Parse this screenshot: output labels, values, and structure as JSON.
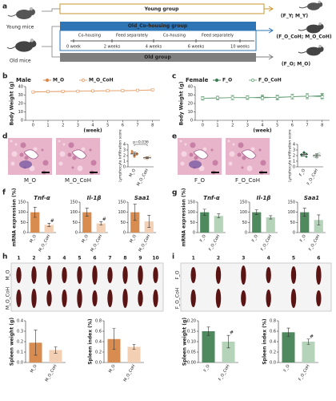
{
  "panel_labels": [
    "a",
    "b",
    "c",
    "d",
    "e",
    "f",
    "g",
    "h",
    "i"
  ],
  "schematic": {
    "young_mice": "Young mice",
    "old_mice": "Old mice",
    "young_group": "Young group",
    "cohousing_group": "Old_Co-housing group",
    "old_group": "Old group",
    "phases": [
      "Co-housing",
      "Feed separately",
      "Co-housing",
      "Feed separately"
    ],
    "timepoints": [
      "0 week",
      "2 weeks",
      "4 weeks",
      "6 weeks",
      "10 weeks"
    ],
    "outcomes": [
      "(F_Y; M_Y)",
      "(F_O_CoH; M_O_CoH)",
      "(F_O; M_O)"
    ]
  },
  "micrographs": {
    "d": [
      "M_O",
      "M_O_CoH"
    ],
    "e": [
      "F_O",
      "F_O_CoH"
    ]
  },
  "spleen_photos": {
    "h": {
      "numbers": [
        "1",
        "2",
        "3",
        "4",
        "5",
        "6",
        "7",
        "8",
        "9",
        "10"
      ],
      "rows": [
        "M_O",
        "M_O_CoH"
      ]
    },
    "i": {
      "numbers": [
        "1",
        "2",
        "3",
        "4",
        "5",
        "6"
      ],
      "rows": [
        "F_O",
        "F_O_CoH"
      ]
    }
  },
  "chart_data": [
    {
      "type": "line",
      "title": "Male",
      "xlabel": "(week)",
      "ylabel": "Body Weight (g)",
      "x": [
        0,
        1,
        2,
        3,
        4,
        5,
        6,
        7,
        8
      ],
      "xlim": [
        -0.5,
        8.5
      ],
      "xticks": [
        0,
        1,
        2,
        3,
        4,
        5,
        6,
        7,
        8
      ],
      "ylim": [
        0,
        40
      ],
      "yticks": [
        0,
        10,
        20,
        30,
        40
      ],
      "series": [
        {
          "name": "M_O",
          "color": "#d9874a",
          "values": [
            33.5,
            34,
            34.2,
            34.5,
            34.8,
            35,
            35.2,
            35.5,
            36
          ],
          "errors": [
            1,
            1,
            1,
            1,
            1,
            1,
            1,
            1,
            1
          ]
        },
        {
          "name": "M_O_CoH",
          "color": "#e8a878",
          "values": [
            33.8,
            34.2,
            34.5,
            34.6,
            34.9,
            35.1,
            35.3,
            35.6,
            36.2
          ],
          "errors": [
            1.2,
            1.2,
            1.2,
            1.2,
            1.2,
            1.2,
            1.2,
            1.2,
            1.2
          ]
        }
      ]
    },
    {
      "type": "line",
      "title": "Female",
      "xlabel": "(week)",
      "ylabel": "Body Weight (g)",
      "x": [
        0,
        1,
        2,
        3,
        4,
        5,
        6,
        7,
        8
      ],
      "xlim": [
        -0.5,
        8.5
      ],
      "xticks": [
        0,
        1,
        2,
        3,
        4,
        5,
        6,
        7,
        8
      ],
      "ylim": [
        0,
        40
      ],
      "yticks": [
        0,
        10,
        20,
        30,
        40
      ],
      "series": [
        {
          "name": "F_O",
          "color": "#3f7f55",
          "values": [
            26,
            26.5,
            27,
            26.8,
            27.5,
            27,
            28,
            28.5,
            29
          ],
          "errors": [
            2,
            2,
            2.5,
            2,
            2.5,
            2.5,
            3,
            3,
            3
          ]
        },
        {
          "name": "F_O_CoH",
          "color": "#7fb08a",
          "values": [
            26.2,
            26.8,
            27,
            27.2,
            26.5,
            27.5,
            28.2,
            28.8,
            27.8
          ],
          "errors": [
            2,
            2,
            2.5,
            2,
            2.5,
            2.5,
            3,
            3,
            3
          ]
        }
      ]
    },
    {
      "type": "dot",
      "ylabel": "Lymphocyte infiltration score",
      "annotation": "p=0.036",
      "categories": [
        "M_O",
        "M_O_CoH"
      ],
      "colors": [
        "#d9874a",
        "#e8a878"
      ],
      "ylim": [
        0,
        4
      ],
      "yticks": [
        0,
        1,
        2,
        3,
        4
      ],
      "points": [
        [
          2.5,
          2.0,
          2.2,
          2.8,
          1.8,
          2.4
        ],
        [
          1.6,
          1.4,
          1.8,
          1.5,
          1.7
        ]
      ],
      "values": [
        2.3,
        1.6
      ],
      "errors": [
        0.3,
        0.15
      ]
    },
    {
      "type": "dot",
      "ylabel": "Lymphocyte infiltration score",
      "categories": [
        "F_O",
        "F_O_CoH"
      ],
      "colors": [
        "#3f7f55",
        "#7fb08a"
      ],
      "ylim": [
        0,
        4
      ],
      "yticks": [
        0,
        1,
        2,
        3,
        4
      ],
      "points": [
        [
          2.2,
          2.5,
          1.8,
          2.0,
          2.6,
          2.3
        ],
        [
          2.0,
          1.6,
          2.4,
          1.8,
          2.2
        ]
      ],
      "values": [
        2.2,
        2.0
      ],
      "errors": [
        0.3,
        0.3
      ]
    },
    {
      "type": "bar",
      "title": "Tnf-α",
      "ylabel": "mRNA expression (%)",
      "categories": [
        "M_O",
        "M_O_CoH"
      ],
      "colors": [
        "#d98c4f",
        "#f3cfb3"
      ],
      "ylim": [
        0,
        150
      ],
      "yticks": [
        0,
        50,
        100,
        150
      ],
      "values": [
        100,
        38
      ],
      "errors": [
        25,
        8
      ],
      "annotations": {
        "M_O_CoH": "#"
      }
    },
    {
      "type": "bar",
      "title": "Il-1β",
      "categories": [
        "M_O",
        "M_O_CoH"
      ],
      "colors": [
        "#d98c4f",
        "#f3cfb3"
      ],
      "ylim": [
        0,
        150
      ],
      "yticks": [
        0,
        50,
        100,
        150
      ],
      "values": [
        100,
        45
      ],
      "errors": [
        20,
        8
      ],
      "annotations": {
        "M_O_CoH": "#"
      }
    },
    {
      "type": "bar",
      "title": "Saa1",
      "categories": [
        "M_O",
        "M_O_CoH"
      ],
      "colors": [
        "#d98c4f",
        "#f3cfb3"
      ],
      "ylim": [
        0,
        150
      ],
      "yticks": [
        0,
        50,
        100,
        150
      ],
      "values": [
        100,
        55
      ],
      "errors": [
        40,
        30
      ]
    },
    {
      "type": "bar",
      "title": "Tnf-α",
      "ylabel": "mRNA expression (%)",
      "categories": [
        "F_O",
        "F_O_CoH"
      ],
      "colors": [
        "#4e8a5e",
        "#b5d3b9"
      ],
      "ylim": [
        0,
        150
      ],
      "yticks": [
        0,
        50,
        100,
        150
      ],
      "values": [
        100,
        82
      ],
      "errors": [
        15,
        10
      ]
    },
    {
      "type": "bar",
      "title": "Il-1β",
      "categories": [
        "F_O",
        "F_O_CoH"
      ],
      "colors": [
        "#4e8a5e",
        "#b5d3b9"
      ],
      "ylim": [
        0,
        150
      ],
      "yticks": [
        0,
        50,
        100,
        150
      ],
      "values": [
        100,
        75
      ],
      "errors": [
        12,
        8
      ]
    },
    {
      "type": "bar",
      "title": "Saa1",
      "categories": [
        "F_O",
        "F_O_CoH"
      ],
      "colors": [
        "#4e8a5e",
        "#b5d3b9"
      ],
      "ylim": [
        0,
        150
      ],
      "yticks": [
        0,
        50,
        100,
        150
      ],
      "values": [
        100,
        62
      ],
      "errors": [
        20,
        25
      ]
    },
    {
      "type": "bar",
      "ylabel": "Spleen weight (g)",
      "categories": [
        "M_O",
        "M_O_CoH"
      ],
      "colors": [
        "#d98c4f",
        "#f3cfb3"
      ],
      "ylim": [
        0,
        0.4
      ],
      "yticks": [
        {
          "value": 0,
          "label": "0.0"
        },
        0.1,
        0.2,
        0.3,
        0.4
      ],
      "values": [
        0.19,
        0.12
      ],
      "errors": [
        0.12,
        0.03
      ]
    },
    {
      "type": "bar",
      "ylabel": "Spleen index (%)",
      "categories": [
        "M_O",
        "M_O_CoH"
      ],
      "colors": [
        "#d98c4f",
        "#f3cfb3"
      ],
      "ylim": [
        0,
        0.8
      ],
      "yticks": [
        {
          "value": 0,
          "label": "0.0"
        },
        0.2,
        0.4,
        0.6,
        0.8
      ],
      "values": [
        0.45,
        0.3
      ],
      "errors": [
        0.2,
        0.05
      ]
    },
    {
      "type": "bar",
      "ylabel": "Spleen weight (g)",
      "categories": [
        "F_O",
        "F_O_CoH"
      ],
      "colors": [
        "#4e8a5e",
        "#b5d3b9"
      ],
      "ylim": [
        0,
        0.2
      ],
      "yticks": [
        {
          "value": 0,
          "label": "0.00"
        },
        0.05,
        {
          "value": 0.1,
          "label": "0.10"
        },
        0.15,
        {
          "value": 0.2,
          "label": "0.20"
        }
      ],
      "values": [
        0.15,
        0.1
      ],
      "errors": [
        0.02,
        0.03
      ],
      "annotations": {
        "F_O_CoH": "#"
      }
    },
    {
      "type": "bar",
      "ylabel": "Spleen index (%)",
      "categories": [
        "F_O",
        "F_O_CoH"
      ],
      "colors": [
        "#4e8a5e",
        "#b5d3b9"
      ],
      "ylim": [
        0,
        0.8
      ],
      "yticks": [
        {
          "value": 0,
          "label": "0.0"
        },
        0.2,
        0.4,
        0.6,
        0.8
      ],
      "values": [
        0.58,
        0.4
      ],
      "errors": [
        0.08,
        0.05
      ],
      "annotations": {
        "F_O_CoH": "#"
      }
    }
  ]
}
